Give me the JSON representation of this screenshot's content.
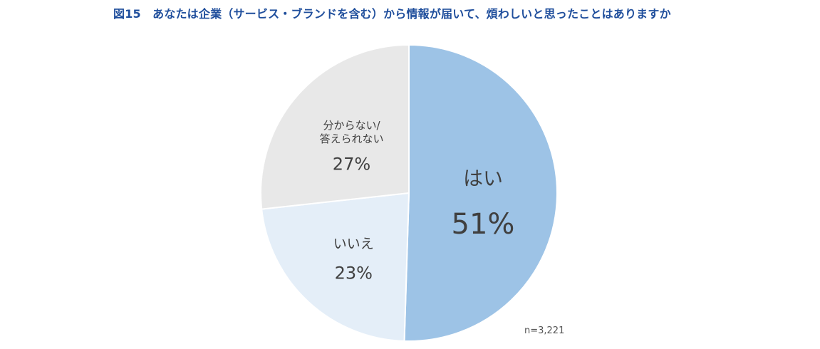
{
  "title": "図15　あなたは企業（サービス・ブランドを含む）から情報が届いて、煩わしいと思ったことはありますか",
  "note": "n=3,221",
  "chart_data": {
    "type": "pie",
    "categories": [
      "はい",
      "いいえ",
      "分からない/答えられない"
    ],
    "values": [
      51,
      23,
      27
    ],
    "value_labels": [
      "51%",
      "23%",
      "27%"
    ],
    "label_lines": [
      [
        "はい"
      ],
      [
        "いいえ"
      ],
      [
        "分からない/",
        "答えられない"
      ]
    ],
    "colors": [
      "#9dc3e6",
      "#e4eef8",
      "#e8e8e8"
    ],
    "start_angle": "12 o'clock",
    "direction": "clockwise"
  }
}
